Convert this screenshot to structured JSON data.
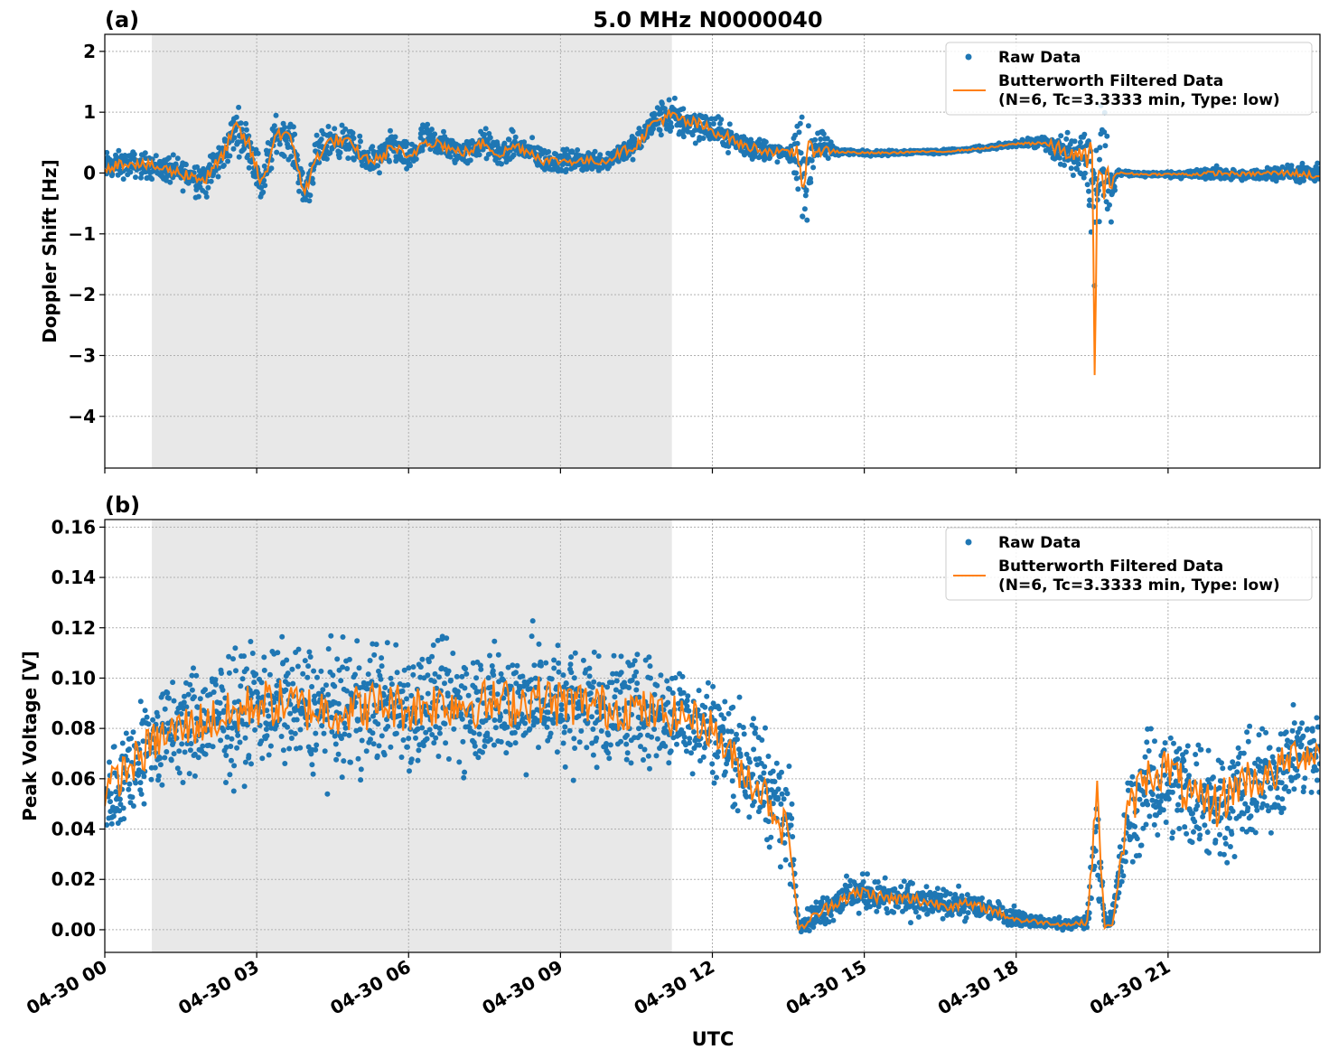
{
  "figure": {
    "xlabel": "UTC",
    "colors": {
      "raw": "#1f77b4",
      "filtered": "#ff7f0e",
      "shade": "#e8e8e8",
      "grid": "#b0b0b0"
    }
  },
  "chart_data": [
    {
      "type": "scatter",
      "panel_label": "(a)",
      "title": "5.0 MHz N0000040",
      "xlabel": "",
      "ylabel": "Doppler Shift [Hz]",
      "x_unit": "hours UTC on 04-30",
      "xlim": [
        0,
        24
      ],
      "ylim": [
        -4.85,
        2.28
      ],
      "yticks": [
        2,
        1,
        0,
        -1,
        -2,
        -3,
        -4
      ],
      "ytick_labels": [
        "2",
        "1",
        "0",
        "−1",
        "−2",
        "−3",
        "−4"
      ],
      "xticks": [
        0,
        3,
        6,
        9,
        12,
        15,
        18,
        21
      ],
      "grid": true,
      "legend_position": "top-right",
      "shaded_interval": [
        0.93,
        11.2
      ],
      "series": [
        {
          "name": "Raw Data",
          "marker": "dot",
          "x": [
            0.0,
            0.5,
            1.0,
            1.5,
            2.0,
            2.3,
            2.6,
            2.85,
            3.1,
            3.4,
            3.7,
            3.95,
            4.2,
            4.5,
            4.8,
            5.1,
            5.4,
            5.7,
            6.0,
            6.3,
            6.6,
            6.9,
            7.2,
            7.5,
            7.8,
            8.1,
            8.4,
            8.7,
            9.0,
            9.3,
            9.6,
            9.9,
            10.2,
            10.5,
            10.8,
            11.1,
            11.4,
            11.7,
            12.0,
            12.3,
            12.6,
            12.9,
            13.2,
            13.5,
            13.7,
            13.85,
            14.0,
            14.5,
            15.0,
            15.5,
            16.0,
            16.5,
            17.0,
            17.5,
            18.0,
            18.5,
            18.8,
            19.1,
            19.4,
            19.55,
            19.7,
            19.85,
            20.0,
            20.5,
            21.0,
            21.5,
            22.0,
            22.5,
            23.0,
            23.5,
            24.0
          ],
          "y": [
            0.1,
            0.15,
            0.1,
            0.0,
            -0.1,
            0.25,
            0.75,
            0.45,
            -0.2,
            0.7,
            0.5,
            -0.35,
            0.3,
            0.55,
            0.5,
            0.25,
            0.2,
            0.45,
            0.2,
            0.55,
            0.5,
            0.35,
            0.35,
            0.5,
            0.3,
            0.45,
            0.35,
            0.2,
            0.2,
            0.2,
            0.2,
            0.2,
            0.35,
            0.45,
            0.8,
            0.95,
            0.85,
            0.8,
            0.7,
            0.6,
            0.45,
            0.4,
            0.35,
            0.3,
            0.35,
            -0.2,
            0.45,
            0.35,
            0.33,
            0.33,
            0.35,
            0.35,
            0.38,
            0.42,
            0.48,
            0.5,
            0.4,
            0.3,
            0.25,
            -0.5,
            0.5,
            -0.4,
            0.0,
            -0.02,
            -0.02,
            -0.02,
            0.0,
            -0.05,
            0.0,
            0.0,
            -0.05
          ],
          "spread": [
            0.35,
            0.3,
            0.3,
            0.35,
            0.45,
            0.4,
            0.5,
            0.45,
            0.55,
            0.45,
            0.45,
            0.5,
            0.45,
            0.4,
            0.35,
            0.35,
            0.35,
            0.4,
            0.35,
            0.4,
            0.35,
            0.3,
            0.3,
            0.35,
            0.3,
            0.35,
            0.3,
            0.3,
            0.25,
            0.25,
            0.25,
            0.25,
            0.25,
            0.3,
            0.35,
            0.45,
            0.45,
            0.4,
            0.35,
            0.3,
            0.3,
            0.3,
            0.25,
            0.1,
            0.9,
            1.2,
            0.5,
            0.08,
            0.06,
            0.06,
            0.05,
            0.05,
            0.05,
            0.06,
            0.06,
            0.15,
            0.5,
            0.4,
            0.6,
            2.0,
            1.2,
            0.8,
            0.08,
            0.06,
            0.06,
            0.12,
            0.15,
            0.12,
            0.15,
            0.2,
            0.25
          ]
        },
        {
          "name": "Butterworth Filtered Data\n(N=6, Tc=3.3333 min, Type: low)",
          "marker": "line",
          "x": [
            0.0,
            0.5,
            1.0,
            1.5,
            2.0,
            2.3,
            2.6,
            2.85,
            3.1,
            3.4,
            3.7,
            3.95,
            4.2,
            4.5,
            4.8,
            5.1,
            5.4,
            5.7,
            6.0,
            6.3,
            6.6,
            6.9,
            7.2,
            7.5,
            7.8,
            8.1,
            8.4,
            8.7,
            9.0,
            9.3,
            9.6,
            9.9,
            10.2,
            10.5,
            10.8,
            11.1,
            11.4,
            11.7,
            12.0,
            12.3,
            12.6,
            12.9,
            13.2,
            13.5,
            13.7,
            13.8,
            13.9,
            14.0,
            14.5,
            15.0,
            15.5,
            16.0,
            16.5,
            17.0,
            17.5,
            18.0,
            18.5,
            18.8,
            19.1,
            19.4,
            19.5,
            19.55,
            19.6,
            19.7,
            19.85,
            20.0,
            20.5,
            21.0,
            21.5,
            22.0,
            22.5,
            23.0,
            23.5,
            24.0
          ],
          "y": [
            0.1,
            0.18,
            0.1,
            0.0,
            -0.1,
            0.25,
            0.75,
            0.45,
            -0.2,
            0.7,
            0.5,
            -0.35,
            0.3,
            0.55,
            0.5,
            0.25,
            0.2,
            0.45,
            0.2,
            0.55,
            0.5,
            0.35,
            0.35,
            0.5,
            0.3,
            0.45,
            0.35,
            0.2,
            0.2,
            0.2,
            0.2,
            0.2,
            0.35,
            0.45,
            0.8,
            0.95,
            0.85,
            0.8,
            0.7,
            0.6,
            0.45,
            0.4,
            0.35,
            0.35,
            0.35,
            -0.2,
            0.25,
            0.4,
            0.35,
            0.33,
            0.33,
            0.35,
            0.35,
            0.38,
            0.42,
            0.48,
            0.5,
            0.4,
            0.3,
            0.25,
            0.3,
            -3.5,
            0.1,
            -0.3,
            -0.1,
            0.0,
            -0.02,
            -0.02,
            -0.02,
            0.0,
            -0.02,
            0.0,
            0.0,
            -0.05
          ]
        }
      ]
    },
    {
      "type": "scatter",
      "panel_label": "(b)",
      "title": "",
      "xlabel": "UTC",
      "ylabel": "Peak Voltage [V]",
      "x_unit": "hours UTC on 04-30",
      "xlim": [
        0,
        24
      ],
      "ylim": [
        -0.009,
        0.163
      ],
      "yticks": [
        0.16,
        0.14,
        0.12,
        0.1,
        0.08,
        0.06,
        0.04,
        0.02,
        0.0
      ],
      "ytick_labels": [
        "0.16",
        "0.14",
        "0.12",
        "0.10",
        "0.08",
        "0.06",
        "0.04",
        "0.02",
        "0.00"
      ],
      "xticks": [
        0,
        3,
        6,
        9,
        12,
        15,
        18,
        21
      ],
      "xtick_labels": [
        "04-30 00",
        "04-30 03",
        "04-30 06",
        "04-30 09",
        "04-30 12",
        "04-30 15",
        "04-30 18",
        "04-30 21"
      ],
      "grid": true,
      "legend_position": "top-right",
      "shaded_interval": [
        0.93,
        11.2
      ],
      "series": [
        {
          "name": "Raw Data",
          "marker": "dot",
          "x": [
            0.0,
            0.5,
            1.0,
            1.5,
            2.0,
            2.5,
            3.0,
            3.5,
            4.0,
            4.5,
            5.0,
            5.5,
            6.0,
            6.5,
            7.0,
            7.5,
            8.0,
            8.5,
            9.0,
            9.5,
            10.0,
            10.5,
            11.0,
            11.5,
            12.0,
            12.5,
            13.0,
            13.3,
            13.55,
            13.7,
            14.0,
            14.5,
            15.0,
            15.5,
            16.0,
            16.5,
            17.0,
            17.5,
            18.0,
            18.5,
            19.0,
            19.4,
            19.6,
            19.75,
            19.9,
            20.2,
            20.5,
            21.0,
            21.5,
            22.0,
            22.5,
            23.0,
            23.5,
            24.0
          ],
          "y": [
            0.05,
            0.065,
            0.075,
            0.08,
            0.083,
            0.085,
            0.09,
            0.09,
            0.088,
            0.087,
            0.088,
            0.09,
            0.088,
            0.09,
            0.09,
            0.09,
            0.09,
            0.092,
            0.09,
            0.09,
            0.088,
            0.088,
            0.085,
            0.085,
            0.08,
            0.07,
            0.06,
            0.05,
            0.04,
            0.002,
            0.005,
            0.012,
            0.015,
            0.012,
            0.012,
            0.01,
            0.01,
            0.008,
            0.005,
            0.003,
            0.002,
            0.003,
            0.04,
            0.003,
            0.005,
            0.04,
            0.055,
            0.06,
            0.055,
            0.05,
            0.055,
            0.06,
            0.07,
            0.07
          ],
          "spread": [
            0.025,
            0.03,
            0.03,
            0.032,
            0.032,
            0.035,
            0.035,
            0.035,
            0.035,
            0.035,
            0.035,
            0.035,
            0.035,
            0.035,
            0.035,
            0.035,
            0.035,
            0.035,
            0.035,
            0.033,
            0.033,
            0.03,
            0.03,
            0.028,
            0.028,
            0.03,
            0.03,
            0.03,
            0.03,
            0.003,
            0.008,
            0.01,
            0.01,
            0.01,
            0.01,
            0.008,
            0.008,
            0.006,
            0.005,
            0.003,
            0.003,
            0.004,
            0.03,
            0.004,
            0.006,
            0.03,
            0.03,
            0.03,
            0.035,
            0.035,
            0.03,
            0.03,
            0.025,
            0.025
          ]
        },
        {
          "name": "Butterworth Filtered Data\n(N=6, Tc=3.3333 min, Type: low)",
          "marker": "line",
          "x": [
            0.0,
            0.5,
            1.0,
            1.5,
            2.0,
            2.5,
            3.0,
            3.5,
            4.0,
            4.5,
            5.0,
            5.5,
            6.0,
            6.5,
            7.0,
            7.5,
            8.0,
            8.5,
            9.0,
            9.5,
            10.0,
            10.5,
            11.0,
            11.5,
            12.0,
            12.5,
            13.0,
            13.3,
            13.55,
            13.7,
            14.0,
            14.5,
            15.0,
            15.5,
            16.0,
            16.5,
            17.0,
            17.5,
            18.0,
            18.5,
            19.0,
            19.4,
            19.6,
            19.75,
            19.9,
            20.2,
            20.5,
            21.0,
            21.5,
            22.0,
            22.5,
            23.0,
            23.5,
            24.0
          ],
          "y": [
            0.055,
            0.065,
            0.075,
            0.08,
            0.083,
            0.085,
            0.09,
            0.09,
            0.088,
            0.087,
            0.088,
            0.09,
            0.088,
            0.09,
            0.09,
            0.09,
            0.09,
            0.092,
            0.09,
            0.09,
            0.088,
            0.088,
            0.085,
            0.085,
            0.08,
            0.065,
            0.055,
            0.045,
            0.035,
            0.0,
            0.005,
            0.012,
            0.015,
            0.012,
            0.012,
            0.01,
            0.01,
            0.008,
            0.004,
            0.003,
            0.002,
            0.003,
            0.055,
            0.0,
            0.003,
            0.045,
            0.06,
            0.065,
            0.05,
            0.05,
            0.06,
            0.06,
            0.07,
            0.07
          ]
        }
      ]
    }
  ]
}
